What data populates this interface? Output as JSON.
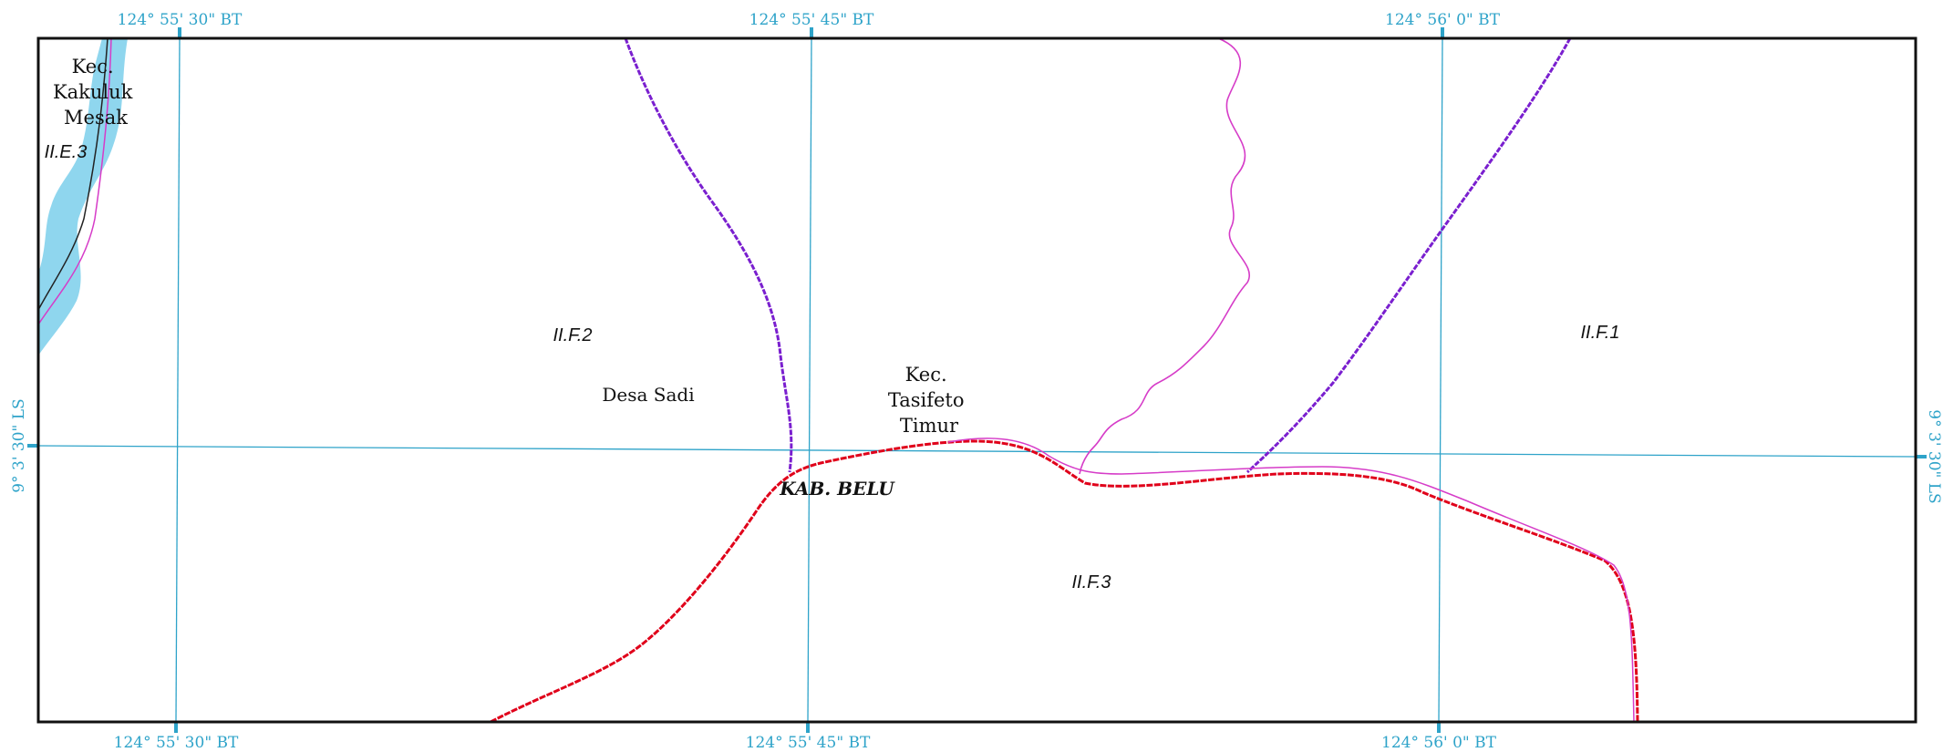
{
  "map": {
    "colors": {
      "grid": "#2ea3c9",
      "frame": "#111111",
      "water": "#8fd6ee",
      "district_boundary": "#7a1fcf",
      "regency_boundary": "#e0001a",
      "village_boundary": "#d63cc8"
    },
    "graticule": {
      "top_labels": [
        "124° 55' 30\" BT",
        "124° 55' 45\" BT",
        "124° 56' 0\" BT"
      ],
      "bottom_labels": [
        "124° 55' 30\" BT",
        "124° 55' 45\" BT",
        "124° 56' 0\" BT"
      ],
      "left_label": "9° 3' 30\" LS",
      "right_label": "9° 3' 30\" LS"
    },
    "labels": {
      "kec_kakuluk": [
        "Kec.",
        "Kakuluk",
        "Mesak"
      ],
      "kec_tasifeto": [
        "Kec.",
        "Tasifeto",
        "Timur"
      ],
      "desa_sadi": "Desa Sadi",
      "kab_belu": "KAB. BELU",
      "code_ie3": "II.E.3",
      "code_if2": "II.F.2",
      "code_if1": "II.F.1",
      "code_if3": "II.F.3"
    }
  }
}
